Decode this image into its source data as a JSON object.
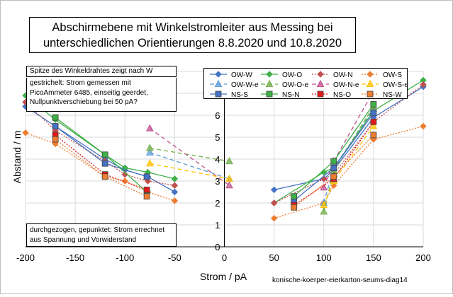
{
  "title_lines": [
    "Abschirmebene mit Winkelstromleiter aus Messing bei",
    "unterschiedlichen Orientierungen 8.8.2020 und  10.8.2020"
  ],
  "notes": {
    "tip": "Spitze des Winkeldrahtes zeigt nach W",
    "dashed": "gestrichelt: Strom gemessen mit PicoAmmeter 6485, einseitig geerdet, Nullpunktverschiebung bei 50 pA?",
    "solid": "durchgezogen, gepunktet: Strom errechnet aus Spannung und Vorwiderstand"
  },
  "footer_label": "konische-koerper-eierkarton-seums-diag14",
  "chart_data": {
    "type": "scatter",
    "xlabel": "Strom / pA",
    "ylabel": "Abstand / m",
    "xlim": [
      -200,
      200
    ],
    "ylim": [
      0,
      8
    ],
    "xticks": [
      -200,
      -150,
      -100,
      -50,
      0,
      50,
      100,
      150,
      200
    ],
    "yticks": [
      0,
      1,
      2,
      3,
      4,
      5,
      6,
      7,
      8
    ],
    "grid": "both",
    "legend_position": "top-right",
    "series": [
      {
        "name": "OW-W",
        "color": "#4472C4",
        "line": "solid",
        "marker": "diamond",
        "points": [
          [
            -200,
            6.4
          ],
          [
            -170,
            5.5
          ],
          [
            -120,
            4.0
          ],
          [
            -100,
            3.5
          ],
          [
            -77,
            3.2
          ],
          [
            -50,
            2.5
          ],
          [
            50,
            2.6
          ],
          [
            100,
            3.1
          ],
          [
            110,
            3.5
          ],
          [
            150,
            5.9
          ],
          [
            200,
            7.3
          ]
        ]
      },
      {
        "name": "OW-O",
        "color": "#3FAF47",
        "line": "solid",
        "marker": "diamond",
        "points": [
          [
            -200,
            6.9
          ],
          [
            -170,
            5.8
          ],
          [
            -120,
            4.2
          ],
          [
            -100,
            3.6
          ],
          [
            -77,
            3.4
          ],
          [
            -50,
            3.1
          ],
          [
            50,
            2.0
          ],
          [
            100,
            3.4
          ],
          [
            110,
            3.6
          ],
          [
            150,
            6.2
          ],
          [
            200,
            7.6
          ]
        ]
      },
      {
        "name": "OW-N",
        "color": "#C0504D",
        "line": "dotted",
        "marker": "diamond",
        "points": [
          [
            -200,
            6.6
          ],
          [
            -170,
            5.3
          ],
          [
            -120,
            3.9
          ],
          [
            -100,
            3.3
          ],
          [
            -77,
            3.0
          ],
          [
            -50,
            2.8
          ],
          [
            50,
            2.0
          ],
          [
            100,
            3.1
          ],
          [
            110,
            3.3
          ],
          [
            150,
            5.7
          ],
          [
            200,
            7.4
          ]
        ]
      },
      {
        "name": "OW-S",
        "color": "#ED7D31",
        "line": "dotted",
        "marker": "diamond",
        "points": [
          [
            -200,
            5.2
          ],
          [
            -170,
            4.7
          ],
          [
            -120,
            3.2
          ],
          [
            -100,
            3.0
          ],
          [
            -77,
            2.5
          ],
          [
            -50,
            2.1
          ],
          [
            50,
            1.3
          ],
          [
            100,
            2.0
          ],
          [
            110,
            2.8
          ],
          [
            150,
            4.9
          ],
          [
            200,
            5.5
          ]
        ]
      },
      {
        "name": "OW-W-e",
        "color": "#5B9BD5",
        "line": "dashed",
        "marker": "triangle",
        "points": [
          [
            -75,
            4.3
          ],
          [
            5,
            3.1
          ],
          [
            100,
            2.0
          ],
          [
            110,
            3.6
          ],
          [
            150,
            6.3
          ]
        ]
      },
      {
        "name": "OW-O-e",
        "color": "#70AD47",
        "line": "dashed",
        "marker": "triangle",
        "points": [
          [
            -75,
            4.5
          ],
          [
            5,
            3.9
          ],
          [
            100,
            1.6
          ],
          [
            110,
            3.5
          ],
          [
            150,
            6.4
          ]
        ]
      },
      {
        "name": "OW-N-e",
        "color": "#C0508D",
        "line": "dashed",
        "marker": "triangle",
        "points": [
          [
            -75,
            5.4
          ],
          [
            5,
            2.8
          ],
          [
            100,
            2.7
          ],
          [
            110,
            3.9
          ],
          [
            150,
            7.1
          ]
        ]
      },
      {
        "name": "OW-S-e",
        "color": "#FFC000",
        "line": "dashed",
        "marker": "triangle",
        "points": [
          [
            -75,
            3.8
          ],
          [
            5,
            3.1
          ],
          [
            100,
            1.9
          ],
          [
            110,
            3.0
          ],
          [
            150,
            5.5
          ]
        ]
      },
      {
        "name": "NS-S",
        "color": "#4472C4",
        "line": "solid",
        "marker": "square",
        "points": [
          [
            -170,
            5.5
          ],
          [
            -120,
            3.8
          ],
          [
            -78,
            3.2
          ],
          [
            70,
            2.1
          ],
          [
            110,
            3.6
          ],
          [
            150,
            6.1
          ]
        ]
      },
      {
        "name": "NS-N",
        "color": "#3FAF47",
        "line": "solid",
        "marker": "square",
        "points": [
          [
            -170,
            5.9
          ],
          [
            -120,
            4.2
          ],
          [
            -78,
            2.5
          ],
          [
            70,
            2.3
          ],
          [
            110,
            3.9
          ],
          [
            150,
            6.5
          ]
        ]
      },
      {
        "name": "NS-O",
        "color": "#E31A1C",
        "line": "dotted",
        "marker": "square",
        "points": [
          [
            -170,
            5.1
          ],
          [
            -120,
            3.3
          ],
          [
            -78,
            2.6
          ],
          [
            70,
            1.9
          ],
          [
            110,
            3.1
          ],
          [
            150,
            5.7
          ]
        ]
      },
      {
        "name": "NS-W",
        "color": "#ED7D31",
        "line": "dotted",
        "marker": "square",
        "points": [
          [
            -170,
            4.9
          ],
          [
            -120,
            3.2
          ],
          [
            -78,
            2.3
          ],
          [
            70,
            1.8
          ],
          [
            110,
            3.2
          ],
          [
            150,
            5.1
          ]
        ]
      }
    ]
  }
}
